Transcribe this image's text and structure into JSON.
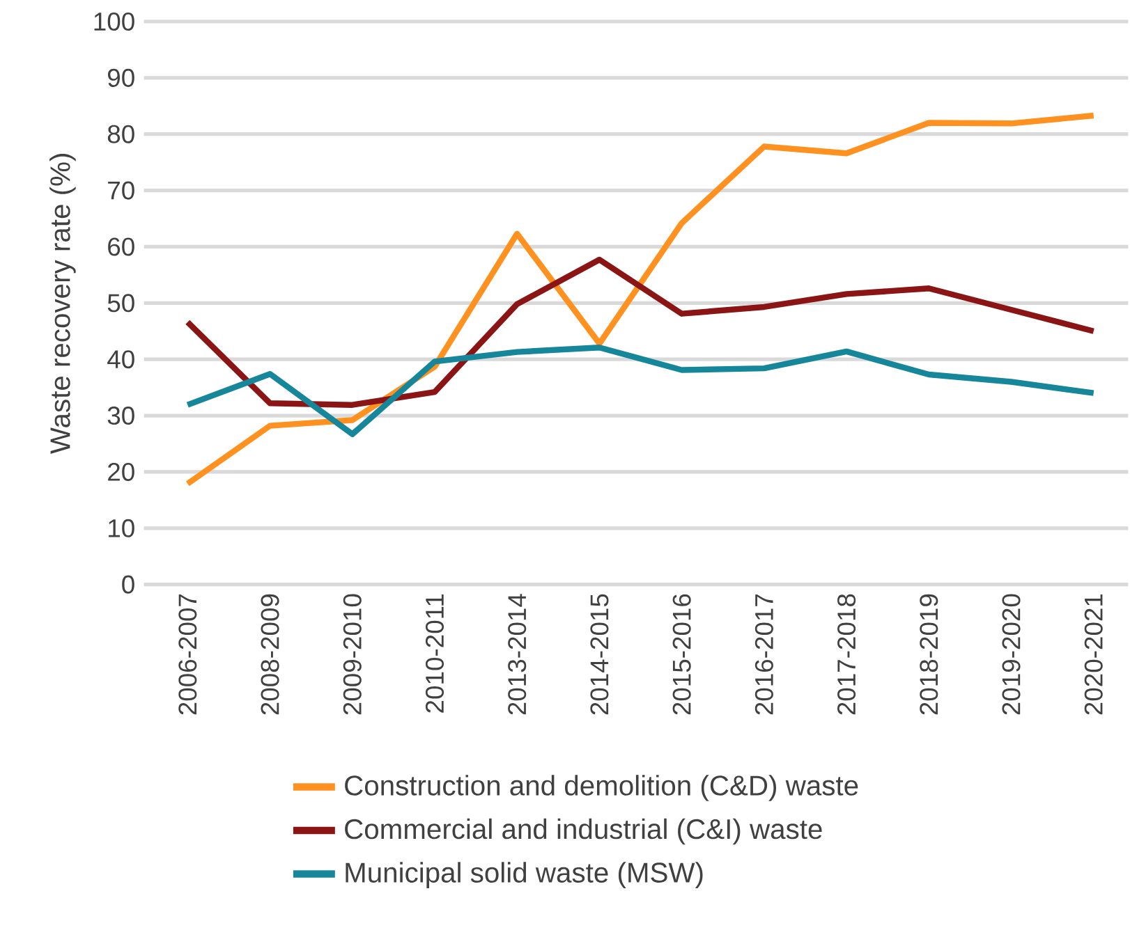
{
  "chart_data": {
    "type": "line",
    "ylabel": "Waste recovery rate (%)",
    "categories": [
      "2006-2007",
      "2008-2009",
      "2009-2010",
      "2010-2011",
      "2013-2014",
      "2014-2015",
      "2015-2016",
      "2016-2017",
      "2017-2018",
      "2018-2019",
      "2019-2020",
      "2020-2021"
    ],
    "series": [
      {
        "name": "Construction and demolition (C&D) waste",
        "color": "#ff9120",
        "values": [
          17.9,
          28.2,
          29.2,
          38.7,
          62.3,
          42.8,
          64.2,
          77.8,
          76.6,
          82.0,
          81.9,
          83.3
        ]
      },
      {
        "name": "Commercial and industrial (C&I) waste",
        "color": "#8b1414",
        "values": [
          46.6,
          32.2,
          31.9,
          34.2,
          49.8,
          57.7,
          48.1,
          49.3,
          51.6,
          52.6,
          48.8,
          45.0
        ]
      },
      {
        "name": "Municipal solid waste (MSW)",
        "color": "#16869a",
        "values": [
          31.9,
          37.4,
          26.7,
          39.6,
          41.3,
          42.1,
          38.1,
          38.4,
          41.4,
          37.3,
          36.0,
          34.0
        ]
      }
    ],
    "ylim": [
      0,
      100
    ],
    "yticks": [
      0,
      10,
      20,
      30,
      40,
      50,
      60,
      70,
      80,
      90,
      100
    ],
    "grid": "y",
    "legend": "bottom",
    "marker": "none",
    "line_style": "solid"
  }
}
